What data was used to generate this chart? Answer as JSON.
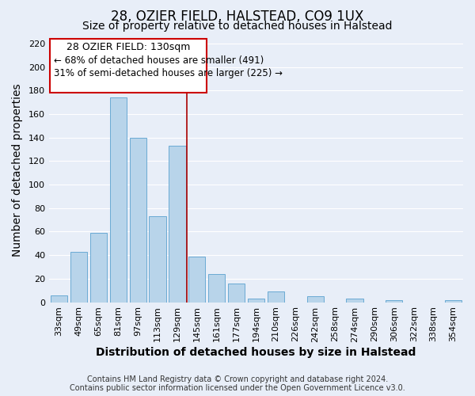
{
  "title": "28, OZIER FIELD, HALSTEAD, CO9 1UX",
  "subtitle": "Size of property relative to detached houses in Halstead",
  "xlabel": "Distribution of detached houses by size in Halstead",
  "ylabel": "Number of detached properties",
  "categories": [
    "33sqm",
    "49sqm",
    "65sqm",
    "81sqm",
    "97sqm",
    "113sqm",
    "129sqm",
    "145sqm",
    "161sqm",
    "177sqm",
    "194sqm",
    "210sqm",
    "226sqm",
    "242sqm",
    "258sqm",
    "274sqm",
    "290sqm",
    "306sqm",
    "322sqm",
    "338sqm",
    "354sqm"
  ],
  "values": [
    6,
    43,
    59,
    174,
    140,
    73,
    133,
    39,
    24,
    16,
    3,
    9,
    0,
    5,
    0,
    3,
    0,
    2,
    0,
    0,
    2
  ],
  "bar_color": "#b8d4ea",
  "bar_edge_color": "#6aaad4",
  "vline_color": "#aa0000",
  "annotation_title": "28 OZIER FIELD: 130sqm",
  "annotation_line1": "← 68% of detached houses are smaller (491)",
  "annotation_line2": "31% of semi-detached houses are larger (225) →",
  "annotation_box_edge_color": "#cc0000",
  "ylim": [
    0,
    225
  ],
  "yticks": [
    0,
    20,
    40,
    60,
    80,
    100,
    120,
    140,
    160,
    180,
    200,
    220
  ],
  "footer1": "Contains HM Land Registry data © Crown copyright and database right 2024.",
  "footer2": "Contains public sector information licensed under the Open Government Licence v3.0.",
  "background_color": "#e8eef8",
  "grid_color": "#ffffff",
  "title_fontsize": 12,
  "subtitle_fontsize": 10,
  "axis_label_fontsize": 10,
  "tick_fontsize": 8,
  "footer_fontsize": 7,
  "vline_index": 6.5
}
